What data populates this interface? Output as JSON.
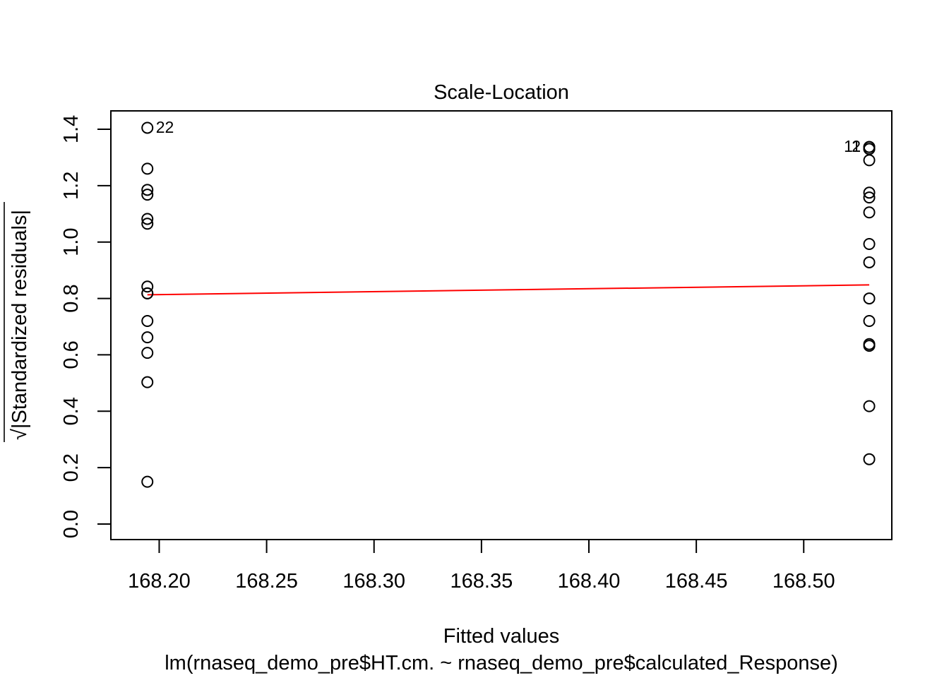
{
  "chart_data": {
    "type": "scatter",
    "title": "Scale-Location",
    "xlabel": "Fitted values",
    "subtitle": "lm(rnaseq_demo_pre$HT.cm. ~ rnaseq_demo_pre$calculated_Response)",
    "ylabel_sqrt_symbol": "√",
    "ylabel": "|Standardized residuals|",
    "xlim": [
      168.1775,
      168.541
    ],
    "ylim": [
      -0.055,
      1.465
    ],
    "x_ticks": [
      168.2,
      168.25,
      168.3,
      168.35,
      168.4,
      168.45,
      168.5
    ],
    "x_tick_labels": [
      "168.20",
      "168.25",
      "168.30",
      "168.35",
      "168.40",
      "168.45",
      "168.50"
    ],
    "y_ticks": [
      0.0,
      0.2,
      0.4,
      0.6,
      0.8,
      1.0,
      1.2,
      1.4
    ],
    "y_tick_labels": [
      "0.0",
      "0.2",
      "0.4",
      "0.6",
      "0.8",
      "1.0",
      "1.2",
      "1.4"
    ],
    "grid": false,
    "series": [
      {
        "x": [
          168.1945,
          168.1945,
          168.1945,
          168.1945,
          168.1945,
          168.1945,
          168.1945,
          168.1945,
          168.1945,
          168.1945,
          168.1945,
          168.1945,
          168.1945,
          168.1945,
          168.5305,
          168.5305,
          168.5305,
          168.5305,
          168.5305,
          168.5305,
          168.5305,
          168.5305,
          168.5305,
          168.5305,
          168.5305,
          168.5305,
          168.5305,
          168.5305,
          168.5305,
          168.5305
        ],
        "y": [
          1.405,
          1.26,
          1.185,
          1.168,
          1.082,
          1.065,
          0.842,
          0.818,
          0.72,
          0.662,
          0.607,
          0.503,
          0.15,
          0.818,
          1.337,
          1.33,
          1.29,
          1.175,
          1.158,
          1.105,
          0.993,
          0.928,
          0.8,
          0.72,
          0.638,
          0.632,
          0.418,
          0.23,
          1.337,
          1.33
        ],
        "marker": "open-circle"
      }
    ],
    "point_labels": [
      {
        "text": "22",
        "x": 168.1945,
        "y": 1.405,
        "side": "right"
      },
      {
        "text": "2",
        "x": 168.5305,
        "y": 1.337,
        "side": "left"
      },
      {
        "text": "11",
        "x": 168.5305,
        "y": 1.337,
        "side": "left"
      }
    ],
    "smooth_line": {
      "color": "#ff0000",
      "x": [
        168.1945,
        168.5305
      ],
      "y": [
        0.813,
        0.848
      ]
    }
  }
}
